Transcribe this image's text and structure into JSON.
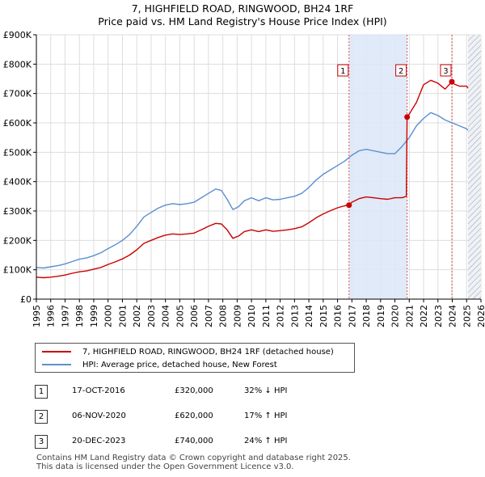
{
  "title_line1": "7, HIGHFIELD ROAD, RINGWOOD, BH24 1RF",
  "title_line2": "Price paid vs. HM Land Registry's House Price Index (HPI)",
  "colors": {
    "property": "#cc0000",
    "hpi": "#5b8fcf",
    "highlight_band": "#dbe6f7",
    "hatch": "#999999",
    "grid": "#dddddd",
    "marker_line": "#e05050"
  },
  "legend": {
    "property_label": "7, HIGHFIELD ROAD, RINGWOOD, BH24 1RF (detached house)",
    "hpi_label": "HPI: Average price, detached house, New Forest"
  },
  "transactions": [
    {
      "id": "1",
      "date": "17-OCT-2016",
      "price": "£320,000",
      "hpi_change": "32% ↓ HPI"
    },
    {
      "id": "2",
      "date": "06-NOV-2020",
      "price": "£620,000",
      "hpi_change": "17% ↑ HPI"
    },
    {
      "id": "3",
      "date": "20-DEC-2023",
      "price": "£740,000",
      "hpi_change": "24% ↑ HPI"
    }
  ],
  "footer_line1": "Contains HM Land Registry data © Crown copyright and database right 2025.",
  "footer_line2": "This data is licensed under the Open Government Licence v3.0.",
  "chart_data": {
    "type": "line",
    "title": "7, HIGHFIELD ROAD, RINGWOOD, BH24 1RF — Price paid vs. HM Land Registry's House Price Index (HPI)",
    "xlim": [
      1995,
      2026
    ],
    "ylim": [
      0,
      900000
    ],
    "x_ticks": [
      "1995",
      "1996",
      "1997",
      "1998",
      "1999",
      "2000",
      "2001",
      "2002",
      "2003",
      "2004",
      "2005",
      "2006",
      "2007",
      "2008",
      "2009",
      "2010",
      "2011",
      "2012",
      "2013",
      "2014",
      "2015",
      "2016",
      "2017",
      "2018",
      "2019",
      "2020",
      "2021",
      "2022",
      "2023",
      "2024",
      "2025",
      "2026"
    ],
    "y_ticks": [
      {
        "value": 0,
        "label": "£0"
      },
      {
        "value": 100000,
        "label": "£100K"
      },
      {
        "value": 200000,
        "label": "£200K"
      },
      {
        "value": 300000,
        "label": "£300K"
      },
      {
        "value": 400000,
        "label": "£400K"
      },
      {
        "value": 500000,
        "label": "£500K"
      },
      {
        "value": 600000,
        "label": "£600K"
      },
      {
        "value": 700000,
        "label": "£700K"
      },
      {
        "value": 800000,
        "label": "£800K"
      },
      {
        "value": 900000,
        "label": "£900K"
      }
    ],
    "grid": true,
    "shaded_period": [
      2016.8,
      2020.85
    ],
    "hatched_period": [
      2025.1,
      2026
    ],
    "series": [
      {
        "name": "HPI: Average price, detached house, New Forest",
        "x": [
          1995,
          1995.5,
          1996,
          1996.5,
          1997,
          1997.5,
          1998,
          1998.5,
          1999,
          1999.5,
          2000,
          2000.5,
          2001,
          2001.5,
          2002,
          2002.5,
          2003,
          2003.5,
          2004,
          2004.5,
          2005,
          2005.5,
          2006,
          2006.5,
          2007,
          2007.5,
          2007.9,
          2008.3,
          2008.7,
          2009.1,
          2009.5,
          2010,
          2010.5,
          2011,
          2011.5,
          2012,
          2012.5,
          2013,
          2013.5,
          2014,
          2014.5,
          2015,
          2015.5,
          2016,
          2016.5,
          2017,
          2017.5,
          2018,
          2018.5,
          2019,
          2019.5,
          2020,
          2020.5,
          2021,
          2021.5,
          2022,
          2022.5,
          2023,
          2023.5,
          2024,
          2024.5,
          2025,
          2025.1
        ],
        "values": [
          108000,
          106000,
          110000,
          114000,
          120000,
          128000,
          136000,
          140000,
          148000,
          158000,
          172000,
          185000,
          200000,
          220000,
          248000,
          280000,
          295000,
          310000,
          320000,
          325000,
          322000,
          325000,
          330000,
          345000,
          360000,
          375000,
          370000,
          340000,
          305000,
          315000,
          335000,
          345000,
          335000,
          345000,
          338000,
          340000,
          345000,
          350000,
          360000,
          380000,
          405000,
          425000,
          440000,
          455000,
          470000,
          490000,
          505000,
          510000,
          505000,
          500000,
          495000,
          495000,
          520000,
          550000,
          590000,
          615000,
          635000,
          625000,
          610000,
          600000,
          590000,
          580000,
          575000
        ]
      },
      {
        "name": "7, HIGHFIELD ROAD, RINGWOOD, BH24 1RF (detached house)",
        "x": [
          1995,
          1995.5,
          1996,
          1996.5,
          1997,
          1997.5,
          1998,
          1998.5,
          1999,
          1999.5,
          2000,
          2000.5,
          2001,
          2001.5,
          2002,
          2002.5,
          2003,
          2003.5,
          2004,
          2004.5,
          2005,
          2005.5,
          2006,
          2006.5,
          2007,
          2007.5,
          2007.9,
          2008.3,
          2008.7,
          2009.1,
          2009.5,
          2010,
          2010.5,
          2011,
          2011.5,
          2012,
          2012.5,
          2013,
          2013.5,
          2014,
          2014.5,
          2015,
          2015.5,
          2016,
          2016.5,
          2016.8,
          2017,
          2017.5,
          2018,
          2018.5,
          2019,
          2019.5,
          2020,
          2020.5,
          2020.8,
          2020.85,
          2021,
          2021.5,
          2022,
          2022.5,
          2023,
          2023.5,
          2023.97,
          2024,
          2024.5,
          2025,
          2025.1
        ],
        "values": [
          75000,
          73000,
          75000,
          78000,
          82000,
          88000,
          93000,
          96000,
          102000,
          108000,
          118000,
          127000,
          137000,
          150000,
          168000,
          190000,
          200000,
          210000,
          218000,
          222000,
          220000,
          222000,
          225000,
          236000,
          248000,
          258000,
          256000,
          236000,
          207000,
          215000,
          230000,
          236000,
          230000,
          236000,
          231000,
          233000,
          236000,
          240000,
          246000,
          260000,
          277000,
          290000,
          301000,
          311000,
          318000,
          320000,
          330000,
          342000,
          348000,
          345000,
          342000,
          340000,
          345000,
          345000,
          350000,
          620000,
          630000,
          670000,
          730000,
          745000,
          735000,
          715000,
          740000,
          735000,
          725000,
          725000,
          718000
        ]
      }
    ],
    "transactions": [
      {
        "label": "1",
        "x": 2016.8,
        "value": 320000
      },
      {
        "label": "2",
        "x": 2020.85,
        "value": 620000
      },
      {
        "label": "3",
        "x": 2023.97,
        "value": 740000
      }
    ]
  }
}
